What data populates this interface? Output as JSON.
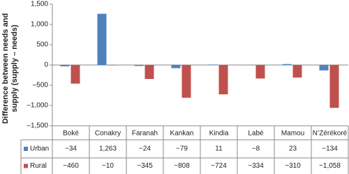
{
  "chart_data": {
    "type": "bar",
    "y_label": "Difference between needs and supply (supply – needs)",
    "categories": [
      "Boké",
      "Conakry",
      "Faranah",
      "Kankan",
      "Kindia",
      "Labé",
      "Mamou",
      "N’Zérékoré"
    ],
    "series": [
      {
        "name": "Urban",
        "color": "#4f81bd",
        "values": [
          -34,
          1263,
          -24,
          -79,
          11,
          -8,
          23,
          -134
        ],
        "value_labels": [
          "−34",
          "1,263",
          "−24",
          "−79",
          "11",
          "−8",
          "23",
          "−134"
        ]
      },
      {
        "name": "Rural",
        "color": "#c0504d",
        "values": [
          -460,
          -10,
          -345,
          -808,
          -724,
          -334,
          -310,
          -1058
        ],
        "value_labels": [
          "−460",
          "−10",
          "−345",
          "−808",
          "−724",
          "−334",
          "−310",
          "−1,058"
        ]
      }
    ],
    "ylim": [
      -1500,
      1500
    ],
    "yticks": [
      {
        "value": -1500,
        "label": "–1,500"
      },
      {
        "value": -1000,
        "label": "–1,000"
      },
      {
        "value": -500,
        "label": "–500"
      },
      0,
      {
        "value": 500,
        "label": "500"
      },
      {
        "value": 1000,
        "label": "1,000"
      },
      {
        "value": 1500,
        "label": "1,500"
      }
    ],
    "grid": false
  }
}
